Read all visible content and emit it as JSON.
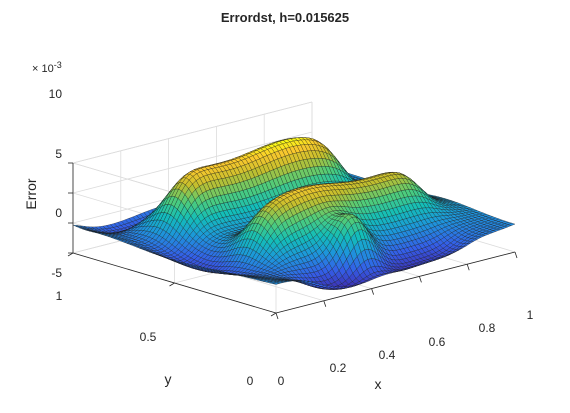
{
  "chart_data": {
    "type": "surface",
    "title": "Errordst, h=0.015625",
    "xlabel": "x",
    "ylabel": "y",
    "zlabel": "Error",
    "z_exponent_label": "× 10^-3",
    "z_exponent_parts": {
      "prefix": "× 10",
      "power": "-3"
    },
    "xlim": [
      0,
      1
    ],
    "ylim": [
      0,
      1
    ],
    "zlim": [
      -0.005,
      0.01
    ],
    "xticks": [
      0,
      0.2,
      0.4,
      0.6,
      0.8,
      1
    ],
    "xtick_labels": [
      "0",
      "0.2",
      "0.4",
      "0.6",
      "0.8",
      "1"
    ],
    "yticks": [
      0,
      0.5,
      1
    ],
    "ytick_labels": [
      "0",
      "0.5",
      "1"
    ],
    "zticks": [
      -0.005,
      0,
      0.005,
      0.01
    ],
    "ztick_labels": [
      "-5",
      "0",
      "5",
      "10"
    ],
    "colormap": "parula",
    "colors": {
      "low": "#3e26a8",
      "mid": "#13beb8",
      "high": "#f9fb15",
      "grid": "#dcdcdc",
      "axis": "#262626"
    },
    "grid": true,
    "mesh_lines": true,
    "mesh_resolution": 64,
    "shape": "two parallel raised ridges running along x near y=0.3 and y=0.7 (peak approx 0.0095), with a bump near x=0.45, y=0.15 and shallow troughs around the domain edges (min approx -0.005)"
  }
}
